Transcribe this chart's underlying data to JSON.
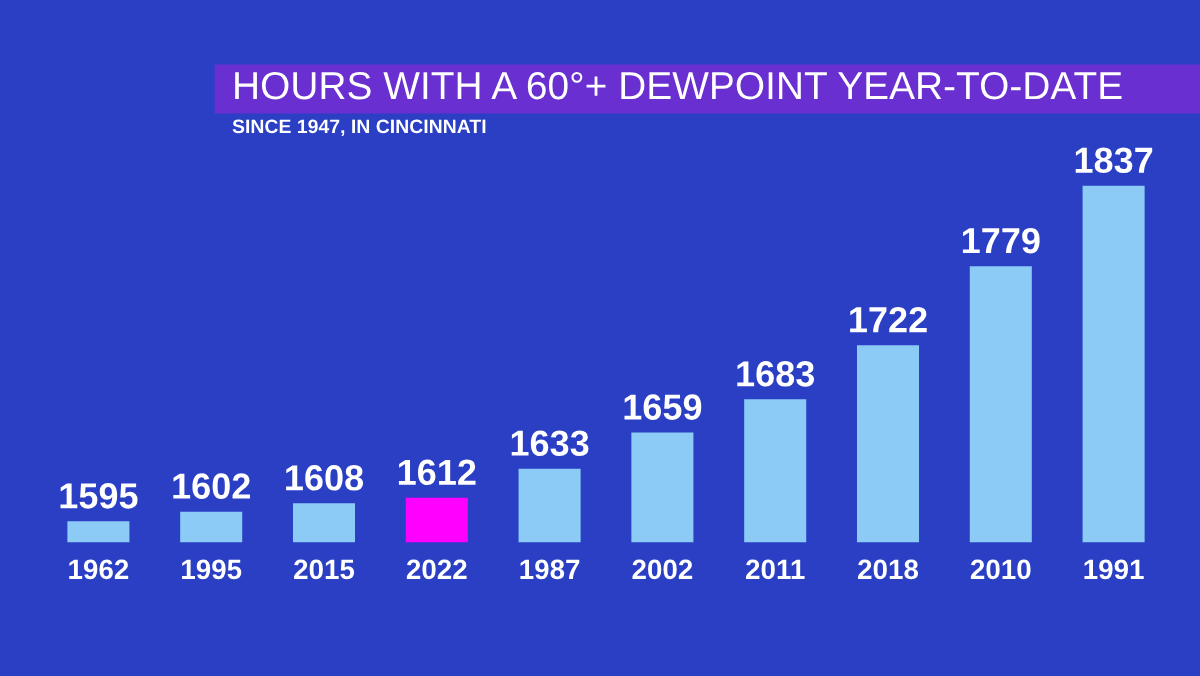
{
  "chart_data": {
    "type": "bar",
    "title": "HOURS WITH A 60°+ DEWPOINT YEAR-TO-DATE",
    "subtitle": "SINCE 1947, IN CINCINNATI",
    "categories": [
      "1962",
      "1995",
      "2015",
      "2022",
      "1987",
      "2002",
      "2011",
      "2018",
      "2010",
      "1991"
    ],
    "values": [
      1595,
      1602,
      1608,
      1612,
      1633,
      1659,
      1683,
      1722,
      1779,
      1837
    ],
    "colors": [
      "#8ccbf5",
      "#8ccbf5",
      "#8ccbf5",
      "#ff00ff",
      "#8ccbf5",
      "#8ccbf5",
      "#8ccbf5",
      "#8ccbf5",
      "#8ccbf5",
      "#8ccbf5"
    ],
    "data_labels": true,
    "grid": false,
    "legend": false
  }
}
